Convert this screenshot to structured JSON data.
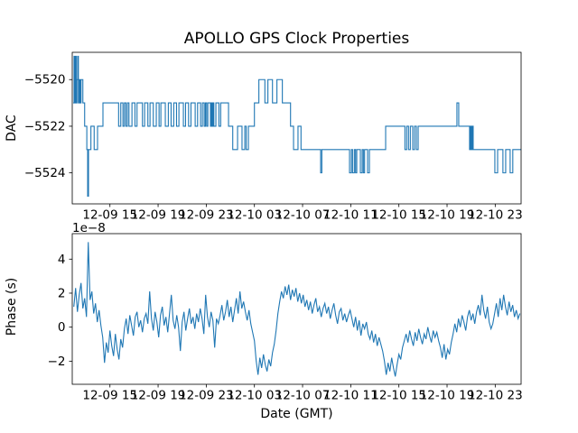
{
  "figure": {
    "title": "APOLLO GPS Clock Properties",
    "background": "#ffffff",
    "line_color": "#1f77b4",
    "spine_color": "#000000"
  },
  "x_axis": {
    "label": "Date (GMT)",
    "tick_values": [
      15,
      19,
      23,
      27,
      31,
      35,
      39,
      43,
      47
    ],
    "tick_labels": [
      "12-09 15",
      "12-09 19",
      "12-09 23",
      "12-10 03",
      "12-10 07",
      "12-10 11",
      "12-10 15",
      "12-10 19",
      "12-10 23"
    ],
    "note_units": "hours since 12-09 00:00 GMT"
  },
  "chart_data": [
    {
      "type": "line",
      "name": "DAC",
      "drawstyle": "steps-post",
      "ylabel": "DAC",
      "xlim": [
        11.87,
        49.15
      ],
      "ylim": [
        -5525.33,
        -5518.83
      ],
      "yticks": [
        -5520,
        -5522,
        -5524
      ],
      "ytick_labels": [
        "−5520",
        "−5522",
        "−5524"
      ],
      "points": [
        [
          11.95,
          -5521
        ],
        [
          12.02,
          -5519
        ],
        [
          12.08,
          -5521
        ],
        [
          12.14,
          -5519
        ],
        [
          12.2,
          -5521
        ],
        [
          12.26,
          -5520
        ],
        [
          12.32,
          -5519
        ],
        [
          12.38,
          -5521
        ],
        [
          12.44,
          -5520
        ],
        [
          12.52,
          -5521
        ],
        [
          12.6,
          -5520
        ],
        [
          12.75,
          -5521
        ],
        [
          12.9,
          -5522
        ],
        [
          13.08,
          -5523
        ],
        [
          13.15,
          -5525
        ],
        [
          13.22,
          -5523
        ],
        [
          13.42,
          -5522
        ],
        [
          13.69,
          -5523
        ],
        [
          13.97,
          -5522
        ],
        [
          14.42,
          -5521
        ],
        [
          15.72,
          -5522
        ],
        [
          15.9,
          -5521
        ],
        [
          16.08,
          -5522
        ],
        [
          16.2,
          -5521
        ],
        [
          16.33,
          -5522
        ],
        [
          16.45,
          -5521
        ],
        [
          16.58,
          -5522
        ],
        [
          16.83,
          -5521
        ],
        [
          17.08,
          -5522
        ],
        [
          17.25,
          -5521
        ],
        [
          17.7,
          -5522
        ],
        [
          17.88,
          -5521
        ],
        [
          18.15,
          -5522
        ],
        [
          18.33,
          -5521
        ],
        [
          18.6,
          -5522
        ],
        [
          18.85,
          -5521
        ],
        [
          19.08,
          -5522
        ],
        [
          19.23,
          -5521
        ],
        [
          19.6,
          -5522
        ],
        [
          19.85,
          -5521
        ],
        [
          20.08,
          -5522
        ],
        [
          20.3,
          -5521
        ],
        [
          20.53,
          -5522
        ],
        [
          20.73,
          -5521
        ],
        [
          21.1,
          -5522
        ],
        [
          21.28,
          -5521
        ],
        [
          21.53,
          -5522
        ],
        [
          21.73,
          -5521
        ],
        [
          22.08,
          -5522
        ],
        [
          22.28,
          -5521
        ],
        [
          22.53,
          -5522
        ],
        [
          22.68,
          -5521
        ],
        [
          22.83,
          -5522
        ],
        [
          22.93,
          -5521
        ],
        [
          23.03,
          -5522
        ],
        [
          23.13,
          -5521
        ],
        [
          23.35,
          -5522
        ],
        [
          23.42,
          -5521
        ],
        [
          23.49,
          -5522
        ],
        [
          23.56,
          -5521
        ],
        [
          23.63,
          -5522
        ],
        [
          23.8,
          -5521
        ],
        [
          24.05,
          -5522
        ],
        [
          24.2,
          -5521
        ],
        [
          24.85,
          -5522
        ],
        [
          25.2,
          -5523
        ],
        [
          25.6,
          -5522
        ],
        [
          25.97,
          -5523
        ],
        [
          26.2,
          -5522
        ],
        [
          26.32,
          -5523
        ],
        [
          26.5,
          -5522
        ],
        [
          27.0,
          -5521
        ],
        [
          27.37,
          -5520
        ],
        [
          27.87,
          -5521
        ],
        [
          28.12,
          -5520
        ],
        [
          28.5,
          -5521
        ],
        [
          28.87,
          -5520
        ],
        [
          29.32,
          -5521
        ],
        [
          30.0,
          -5522
        ],
        [
          30.25,
          -5523
        ],
        [
          30.62,
          -5522
        ],
        [
          30.87,
          -5523
        ],
        [
          32.5,
          -5524
        ],
        [
          32.6,
          -5523
        ],
        [
          34.9,
          -5524
        ],
        [
          35.05,
          -5523
        ],
        [
          35.15,
          -5524
        ],
        [
          35.3,
          -5523
        ],
        [
          35.4,
          -5524
        ],
        [
          35.5,
          -5523
        ],
        [
          35.8,
          -5524
        ],
        [
          35.95,
          -5523
        ],
        [
          36.05,
          -5524
        ],
        [
          36.15,
          -5523
        ],
        [
          36.4,
          -5524
        ],
        [
          36.55,
          -5523
        ],
        [
          37.9,
          -5522
        ],
        [
          39.5,
          -5523
        ],
        [
          39.65,
          -5522
        ],
        [
          39.8,
          -5523
        ],
        [
          39.95,
          -5522
        ],
        [
          40.15,
          -5523
        ],
        [
          40.3,
          -5522
        ],
        [
          40.45,
          -5523
        ],
        [
          40.6,
          -5522
        ],
        [
          43.82,
          -5521
        ],
        [
          43.97,
          -5522
        ],
        [
          44.87,
          -5523
        ],
        [
          44.95,
          -5522
        ],
        [
          45.02,
          -5523
        ],
        [
          45.1,
          -5522
        ],
        [
          45.17,
          -5523
        ],
        [
          46.97,
          -5524
        ],
        [
          47.2,
          -5523
        ],
        [
          47.64,
          -5524
        ],
        [
          47.87,
          -5523
        ],
        [
          48.24,
          -5524
        ],
        [
          48.46,
          -5523
        ]
      ]
    },
    {
      "type": "line",
      "name": "Phase",
      "ylabel": "Phase (s)",
      "offset_label": "1e−8",
      "scale": 1e-08,
      "xlim": [
        11.87,
        49.15
      ],
      "ylim": [
        -3.36,
        5.5
      ],
      "yticks": [
        4,
        2,
        0,
        -2
      ],
      "ytick_labels": [
        "4",
        "2",
        "0",
        "−2"
      ],
      "t0": 12.0,
      "dt": 0.15,
      "values": [
        1.2,
        2.3,
        0.9,
        1.9,
        2.6,
        1.1,
        1.7,
        0.6,
        5.0,
        1.6,
        2.1,
        0.8,
        1.4,
        0.3,
        1.0,
        0.1,
        -0.6,
        -2.1,
        -0.9,
        -1.5,
        -0.2,
        -1.1,
        -1.7,
        -0.4,
        -1.3,
        -1.9,
        -0.7,
        -1.2,
        -0.1,
        0.5,
        -0.4,
        0.7,
        0.1,
        -0.5,
        0.6,
        0.9,
        0.0,
        0.4,
        -0.3,
        0.5,
        0.8,
        0.2,
        2.1,
        0.5,
        -0.2,
        0.9,
        0.3,
        -0.6,
        0.7,
        1.2,
        0.1,
        0.6,
        -0.3,
        0.8,
        1.9,
        0.4,
        -0.1,
        0.7,
        0.0,
        -1.4,
        0.3,
        0.9,
        -0.2,
        0.5,
        1.1,
        0.2,
        0.6,
        -0.1,
        0.8,
        0.3,
        1.1,
        0.5,
        -0.4,
        1.9,
        0.6,
        0.0,
        0.9,
        0.4,
        -1.2,
        0.5,
        0.2,
        0.7,
        1.3,
        0.4,
        0.9,
        1.6,
        0.6,
        1.2,
        0.3,
        1.0,
        1.7,
        0.8,
        2.1,
        1.1,
        1.5,
        0.9,
        0.4,
        1.0,
        0.2,
        -0.3,
        -0.8,
        -2.0,
        -2.8,
        -1.8,
        -2.4,
        -1.6,
        -2.2,
        -2.6,
        -1.9,
        -2.3,
        -1.5,
        -1.0,
        -0.2,
        0.8,
        1.5,
        2.1,
        1.7,
        2.4,
        1.9,
        2.5,
        1.6,
        2.2,
        1.8,
        2.3,
        1.5,
        2.0,
        1.4,
        1.9,
        1.2,
        1.6,
        1.0,
        1.5,
        0.8,
        1.3,
        1.7,
        0.9,
        1.2,
        0.6,
        1.1,
        1.4,
        0.8,
        1.2,
        0.5,
        1.0,
        1.4,
        0.7,
        0.2,
        0.9,
        1.1,
        0.4,
        0.8,
        0.3,
        0.7,
        1.0,
        0.5,
        0.0,
        0.6,
        -0.2,
        0.4,
        -0.5,
        0.2,
        -0.1,
        0.3,
        -0.4,
        -0.7,
        -0.2,
        -0.9,
        -0.4,
        -1.1,
        -0.6,
        -1.0,
        -1.4,
        -2.0,
        -2.8,
        -2.1,
        -2.6,
        -1.8,
        -2.4,
        -2.9,
        -2.2,
        -1.6,
        -1.9,
        -1.2,
        -0.8,
        -0.4,
        -0.9,
        -0.2,
        -0.7,
        -1.1,
        -0.3,
        -0.8,
        -0.1,
        -0.6,
        -1.0,
        -0.4,
        -0.7,
        0.0,
        -0.5,
        -0.9,
        -0.2,
        -0.6,
        -0.3,
        -0.8,
        -1.2,
        -1.8,
        -1.0,
        -1.9,
        -1.3,
        -1.6,
        -0.9,
        -0.4,
        0.2,
        -0.3,
        0.5,
        0.0,
        0.7,
        0.3,
        -0.2,
        0.6,
        1.0,
        0.4,
        0.8,
        0.2,
        0.9,
        1.3,
        0.7,
        1.9,
        1.0,
        0.5,
        1.2,
        0.3,
        -0.1,
        0.2,
        0.8,
        1.4,
        0.6,
        1.7,
        1.0,
        1.9,
        1.2,
        0.7,
        1.5,
        0.9,
        1.3,
        0.6,
        1.0,
        0.5,
        0.8
      ]
    }
  ]
}
